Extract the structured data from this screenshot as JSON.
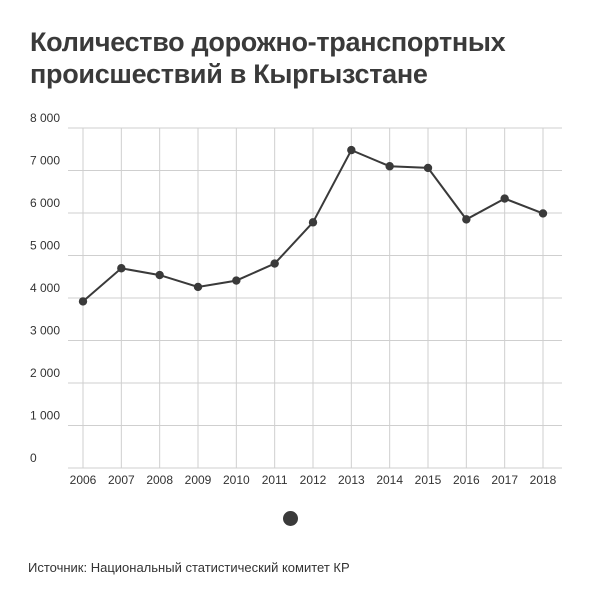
{
  "colors": {
    "series": "#3a3a3a",
    "grid": "#cfcfcf",
    "text": "#333333",
    "background": "#ffffff"
  },
  "title_lines": [
    "Количество дорожно-транспортных",
    "происшествий в Кыргызстане"
  ],
  "source": "Источник: Национальный статистический комитет КР",
  "chart_data": {
    "type": "line",
    "title": "Количество дорожно-транспортных происшествий в Кыргызстане",
    "xlabel": "",
    "ylabel": "",
    "categories": [
      "2006",
      "2007",
      "2008",
      "2009",
      "2010",
      "2011",
      "2012",
      "2013",
      "2014",
      "2015",
      "2016",
      "2017",
      "2018"
    ],
    "series": [
      {
        "values": [
          3920,
          4700,
          4540,
          4260,
          4410,
          4810,
          5780,
          7480,
          7100,
          7060,
          5850,
          6340,
          5990
        ]
      }
    ],
    "ylim": [
      0,
      8000
    ],
    "yticks": [
      0,
      1000,
      2000,
      3000,
      4000,
      5000,
      6000,
      7000,
      8000
    ],
    "ytick_labels": [
      "0",
      "1 000",
      "2 000",
      "3 000",
      "4 000",
      "5 000",
      "6 000",
      "7 000",
      "8 000"
    ],
    "grid": true,
    "legend": "bottom-center"
  }
}
